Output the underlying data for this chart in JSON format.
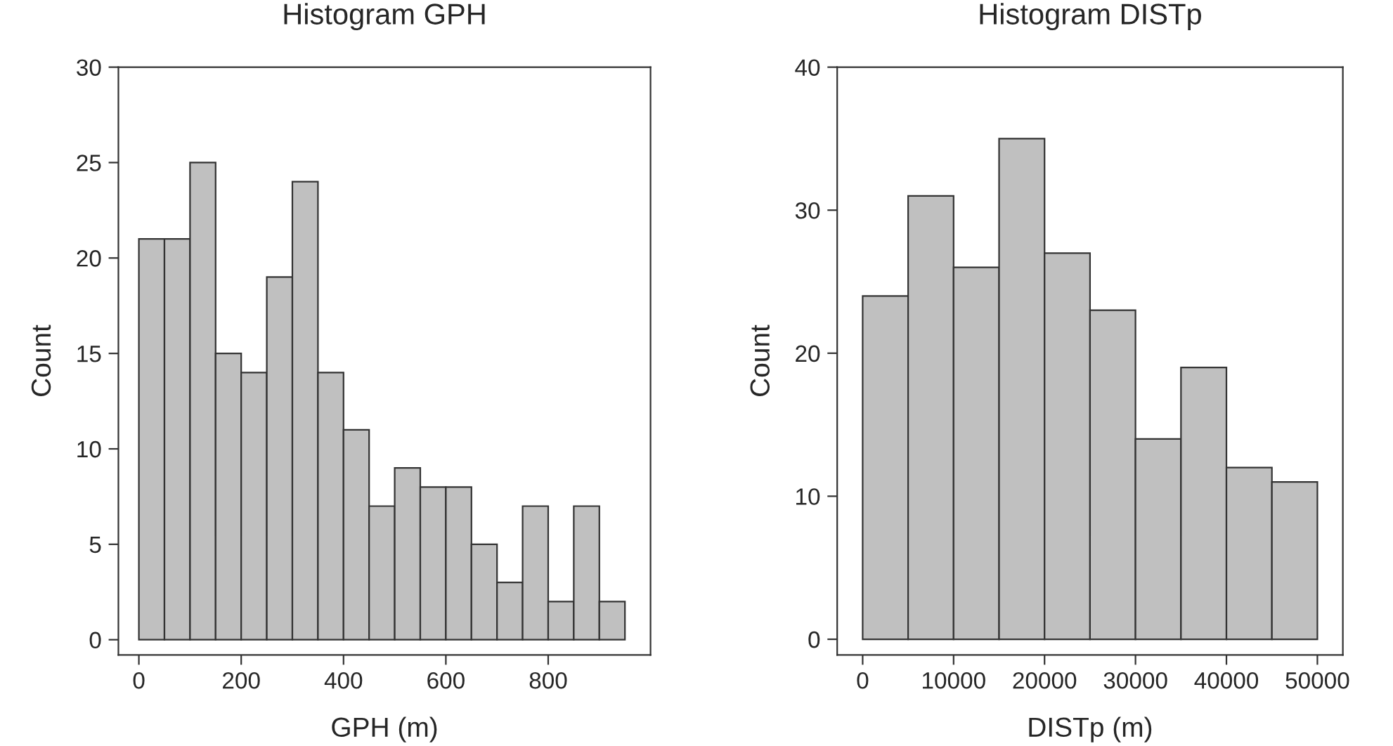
{
  "chart_data": [
    {
      "type": "histogram",
      "title": "Histogram GPH",
      "xlabel": "GPH (m)",
      "ylabel": "Count",
      "color": "#c0c0c0",
      "bins": [
        0,
        50,
        100,
        150,
        200,
        250,
        300,
        350,
        400,
        450,
        500,
        550,
        600,
        650,
        700,
        750,
        800,
        850,
        900,
        950
      ],
      "values": [
        21,
        21,
        25,
        15,
        14,
        19,
        24,
        14,
        11,
        7,
        9,
        8,
        8,
        5,
        3,
        7,
        2,
        7,
        2
      ],
      "xlim": [
        -40,
        1000
      ],
      "ylim": [
        -0.8,
        30
      ],
      "xticks": [
        0,
        200,
        400,
        600,
        800
      ],
      "yticks": [
        0,
        5,
        10,
        15,
        20,
        25,
        30
      ],
      "grid": false
    },
    {
      "type": "histogram",
      "title": "Histogram DISTp",
      "xlabel": "DISTp (m)",
      "ylabel": "Count",
      "color": "#c0c0c0",
      "bins": [
        0,
        5000,
        10000,
        15000,
        20000,
        25000,
        30000,
        35000,
        40000,
        45000,
        50000
      ],
      "values": [
        24,
        31,
        26,
        35,
        27,
        23,
        14,
        19,
        12,
        11
      ],
      "xlim": [
        -2800,
        52800
      ],
      "ylim": [
        -1.1,
        40
      ],
      "xticks": [
        0,
        10000,
        20000,
        30000,
        40000,
        50000
      ],
      "yticks": [
        0,
        10,
        20,
        30,
        40
      ],
      "grid": false
    }
  ]
}
